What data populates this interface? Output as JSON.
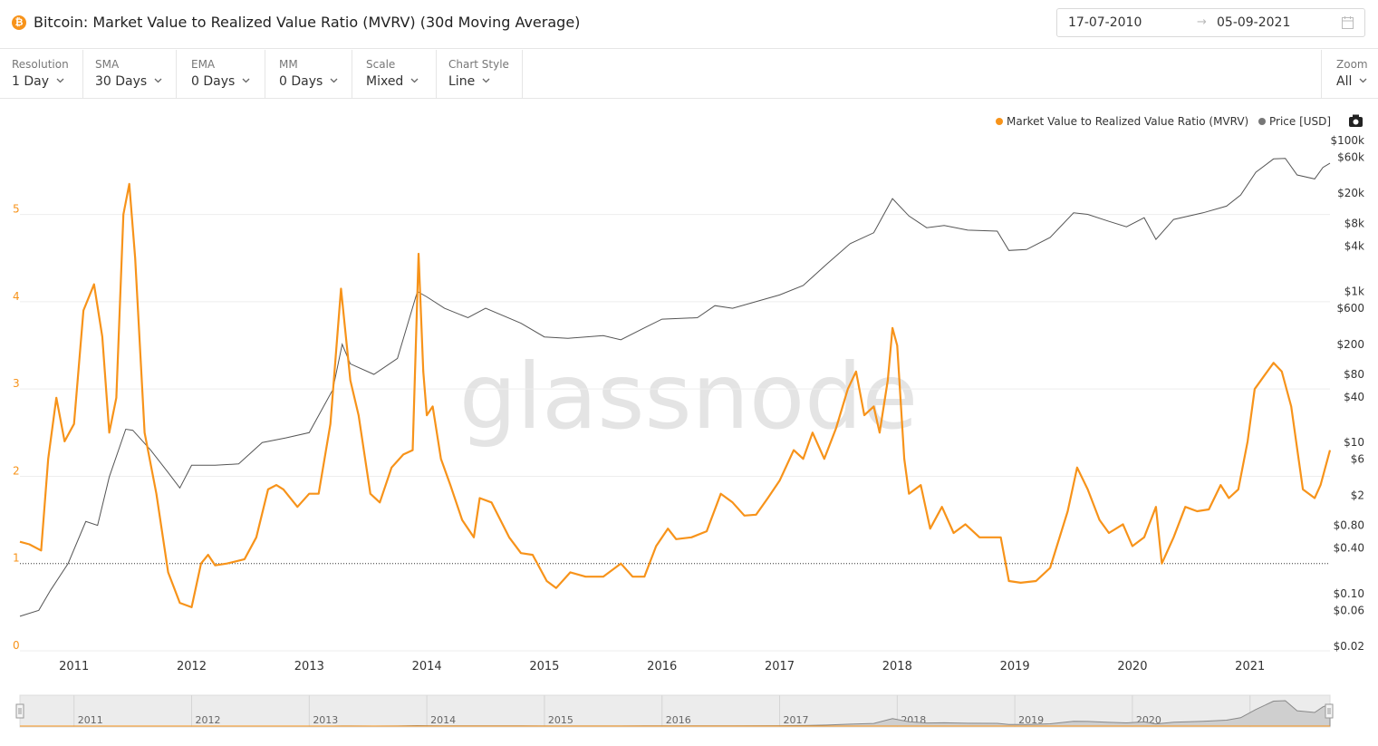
{
  "header": {
    "title": "Bitcoin: Market Value to Realized Value Ratio (MVRV) (30d Moving Average)",
    "coin_symbol": "₿",
    "date_start": "17-07-2010",
    "date_arrow": "→",
    "date_end": "05-09-2021"
  },
  "toolbar": {
    "controls": [
      {
        "label": "Resolution",
        "value": "1 Day"
      },
      {
        "label": "SMA",
        "value": "30 Days"
      },
      {
        "label": "EMA",
        "value": "0 Days"
      },
      {
        "label": "MM",
        "value": "0 Days"
      },
      {
        "label": "Scale",
        "value": "Mixed"
      },
      {
        "label": "Chart Style",
        "value": "Line"
      }
    ],
    "zoom": {
      "label": "Zoom",
      "value": "All"
    }
  },
  "watermark": "glassnode",
  "chart_data": {
    "type": "line",
    "title": "Bitcoin: Market Value to Realized Value Ratio (MVRV) (30d Moving Average)",
    "x_ticks": [
      "2011",
      "2012",
      "2013",
      "2014",
      "2015",
      "2016",
      "2017",
      "2018",
      "2019",
      "2020",
      "2021"
    ],
    "y_left": {
      "ticks": [
        0,
        1,
        2,
        3,
        4,
        5
      ],
      "range": [
        0,
        5.9
      ],
      "color": "#f7931a"
    },
    "y_right": {
      "scale": "log",
      "ticks": [
        "$100k",
        "$60k",
        "$20k",
        "$8k",
        "$4k",
        "$1k",
        "$600",
        "$200",
        "$80",
        "$40",
        "$10",
        "$6",
        "$2",
        "$0.80",
        "$0.40",
        "$0.10",
        "$0.06",
        "$0.02"
      ],
      "range": [
        0.02,
        100000
      ]
    },
    "reference_line": {
      "axis": "left",
      "value": 1,
      "style": "dotted"
    },
    "legend": {
      "placement": "top-right"
    },
    "series": [
      {
        "name": "Market Value to Realized Value Ratio (MVRV)",
        "axis": "left",
        "color": "#f7931a",
        "points": [
          [
            2010.54,
            1.25
          ],
          [
            2010.62,
            1.22
          ],
          [
            2010.72,
            1.15
          ],
          [
            2010.78,
            2.2
          ],
          [
            2010.85,
            2.9
          ],
          [
            2010.92,
            2.4
          ],
          [
            2011.0,
            2.6
          ],
          [
            2011.08,
            3.9
          ],
          [
            2011.17,
            4.2
          ],
          [
            2011.24,
            3.6
          ],
          [
            2011.3,
            2.5
          ],
          [
            2011.36,
            2.9
          ],
          [
            2011.42,
            5.0
          ],
          [
            2011.47,
            5.35
          ],
          [
            2011.52,
            4.5
          ],
          [
            2011.6,
            2.5
          ],
          [
            2011.7,
            1.8
          ],
          [
            2011.8,
            0.9
          ],
          [
            2011.9,
            0.55
          ],
          [
            2012.0,
            0.5
          ],
          [
            2012.08,
            1.0
          ],
          [
            2012.14,
            1.1
          ],
          [
            2012.2,
            0.98
          ],
          [
            2012.3,
            1.0
          ],
          [
            2012.45,
            1.05
          ],
          [
            2012.55,
            1.3
          ],
          [
            2012.65,
            1.85
          ],
          [
            2012.72,
            1.9
          ],
          [
            2012.78,
            1.85
          ],
          [
            2012.9,
            1.65
          ],
          [
            2013.0,
            1.8
          ],
          [
            2013.08,
            1.8
          ],
          [
            2013.18,
            2.6
          ],
          [
            2013.27,
            4.15
          ],
          [
            2013.35,
            3.1
          ],
          [
            2013.42,
            2.7
          ],
          [
            2013.52,
            1.8
          ],
          [
            2013.6,
            1.7
          ],
          [
            2013.7,
            2.1
          ],
          [
            2013.8,
            2.25
          ],
          [
            2013.88,
            2.3
          ],
          [
            2013.93,
            4.55
          ],
          [
            2013.97,
            3.2
          ],
          [
            2014.0,
            2.7
          ],
          [
            2014.05,
            2.8
          ],
          [
            2014.12,
            2.2
          ],
          [
            2014.2,
            1.9
          ],
          [
            2014.3,
            1.5
          ],
          [
            2014.4,
            1.3
          ],
          [
            2014.45,
            1.75
          ],
          [
            2014.55,
            1.7
          ],
          [
            2014.7,
            1.3
          ],
          [
            2014.8,
            1.12
          ],
          [
            2014.9,
            1.1
          ],
          [
            2015.02,
            0.8
          ],
          [
            2015.1,
            0.72
          ],
          [
            2015.22,
            0.9
          ],
          [
            2015.35,
            0.85
          ],
          [
            2015.5,
            0.85
          ],
          [
            2015.65,
            1.0
          ],
          [
            2015.75,
            0.85
          ],
          [
            2015.85,
            0.85
          ],
          [
            2015.95,
            1.2
          ],
          [
            2016.05,
            1.4
          ],
          [
            2016.12,
            1.28
          ],
          [
            2016.25,
            1.3
          ],
          [
            2016.38,
            1.37
          ],
          [
            2016.5,
            1.8
          ],
          [
            2016.6,
            1.7
          ],
          [
            2016.7,
            1.55
          ],
          [
            2016.8,
            1.56
          ],
          [
            2016.9,
            1.75
          ],
          [
            2017.0,
            1.95
          ],
          [
            2017.12,
            2.3
          ],
          [
            2017.2,
            2.2
          ],
          [
            2017.28,
            2.5
          ],
          [
            2017.38,
            2.2
          ],
          [
            2017.48,
            2.55
          ],
          [
            2017.58,
            3.0
          ],
          [
            2017.65,
            3.2
          ],
          [
            2017.72,
            2.7
          ],
          [
            2017.8,
            2.8
          ],
          [
            2017.85,
            2.5
          ],
          [
            2017.92,
            3.1
          ],
          [
            2017.96,
            3.7
          ],
          [
            2018.0,
            3.5
          ],
          [
            2018.06,
            2.2
          ],
          [
            2018.1,
            1.8
          ],
          [
            2018.2,
            1.9
          ],
          [
            2018.28,
            1.4
          ],
          [
            2018.38,
            1.65
          ],
          [
            2018.48,
            1.35
          ],
          [
            2018.58,
            1.45
          ],
          [
            2018.7,
            1.3
          ],
          [
            2018.88,
            1.3
          ],
          [
            2018.95,
            0.8
          ],
          [
            2019.05,
            0.78
          ],
          [
            2019.18,
            0.8
          ],
          [
            2019.3,
            0.95
          ],
          [
            2019.45,
            1.6
          ],
          [
            2019.53,
            2.1
          ],
          [
            2019.62,
            1.85
          ],
          [
            2019.72,
            1.5
          ],
          [
            2019.8,
            1.35
          ],
          [
            2019.92,
            1.45
          ],
          [
            2020.0,
            1.2
          ],
          [
            2020.1,
            1.3
          ],
          [
            2020.2,
            1.65
          ],
          [
            2020.25,
            1.0
          ],
          [
            2020.35,
            1.3
          ],
          [
            2020.45,
            1.65
          ],
          [
            2020.55,
            1.6
          ],
          [
            2020.65,
            1.62
          ],
          [
            2020.75,
            1.9
          ],
          [
            2020.82,
            1.75
          ],
          [
            2020.9,
            1.85
          ],
          [
            2020.98,
            2.4
          ],
          [
            2021.04,
            3.0
          ],
          [
            2021.12,
            3.15
          ],
          [
            2021.2,
            3.3
          ],
          [
            2021.27,
            3.2
          ],
          [
            2021.35,
            2.8
          ],
          [
            2021.45,
            1.85
          ],
          [
            2021.55,
            1.75
          ],
          [
            2021.6,
            1.9
          ],
          [
            2021.68,
            2.3
          ]
        ]
      },
      {
        "name": "Price [USD]",
        "axis": "right",
        "color": "#555555",
        "points": [
          [
            2010.54,
            0.05
          ],
          [
            2010.7,
            0.06
          ],
          [
            2010.8,
            0.11
          ],
          [
            2010.95,
            0.25
          ],
          [
            2011.1,
            0.9
          ],
          [
            2011.2,
            0.8
          ],
          [
            2011.3,
            3.5
          ],
          [
            2011.44,
            15.0
          ],
          [
            2011.5,
            14.5
          ],
          [
            2011.65,
            8.0
          ],
          [
            2011.8,
            4.0
          ],
          [
            2011.9,
            2.5
          ],
          [
            2012.0,
            5.0
          ],
          [
            2012.2,
            5.0
          ],
          [
            2012.4,
            5.2
          ],
          [
            2012.6,
            10.0
          ],
          [
            2012.8,
            11.5
          ],
          [
            2013.0,
            13.5
          ],
          [
            2013.2,
            50.0
          ],
          [
            2013.28,
            200.0
          ],
          [
            2013.35,
            110.0
          ],
          [
            2013.55,
            80.0
          ],
          [
            2013.75,
            130.0
          ],
          [
            2013.92,
            1000.0
          ],
          [
            2014.0,
            850.0
          ],
          [
            2014.15,
            600.0
          ],
          [
            2014.35,
            450.0
          ],
          [
            2014.5,
            600.0
          ],
          [
            2014.8,
            380.0
          ],
          [
            2015.0,
            250.0
          ],
          [
            2015.2,
            240.0
          ],
          [
            2015.5,
            260.0
          ],
          [
            2015.65,
            230.0
          ],
          [
            2015.85,
            330.0
          ],
          [
            2016.0,
            430.0
          ],
          [
            2016.3,
            450.0
          ],
          [
            2016.45,
            650.0
          ],
          [
            2016.6,
            600.0
          ],
          [
            2017.0,
            900.0
          ],
          [
            2017.2,
            1200.0
          ],
          [
            2017.4,
            2300.0
          ],
          [
            2017.6,
            4300.0
          ],
          [
            2017.8,
            6000.0
          ],
          [
            2017.96,
            17000.0
          ],
          [
            2018.1,
            10000.0
          ],
          [
            2018.25,
            7000.0
          ],
          [
            2018.4,
            7500.0
          ],
          [
            2018.6,
            6500.0
          ],
          [
            2018.85,
            6300.0
          ],
          [
            2018.95,
            3500.0
          ],
          [
            2019.1,
            3600.0
          ],
          [
            2019.3,
            5200.0
          ],
          [
            2019.5,
            11000.0
          ],
          [
            2019.62,
            10500.0
          ],
          [
            2019.8,
            8500.0
          ],
          [
            2019.95,
            7200.0
          ],
          [
            2020.1,
            9500.0
          ],
          [
            2020.2,
            4900.0
          ],
          [
            2020.35,
            9000.0
          ],
          [
            2020.6,
            11000.0
          ],
          [
            2020.8,
            13500.0
          ],
          [
            2020.92,
            19000.0
          ],
          [
            2021.05,
            38000.0
          ],
          [
            2021.2,
            57000.0
          ],
          [
            2021.3,
            58000.0
          ],
          [
            2021.4,
            35000.0
          ],
          [
            2021.55,
            31000.0
          ],
          [
            2021.62,
            44000.0
          ],
          [
            2021.68,
            50000.0
          ]
        ]
      }
    ]
  }
}
